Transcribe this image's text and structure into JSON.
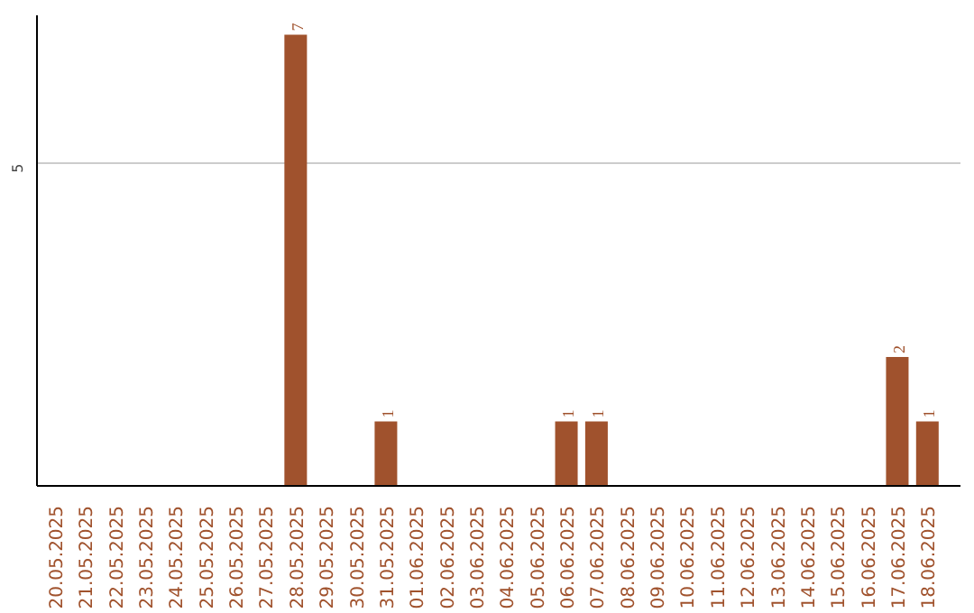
{
  "chart_data": {
    "type": "bar",
    "categories": [
      "20.05.2025",
      "21.05.2025",
      "22.05.2025",
      "23.05.2025",
      "24.05.2025",
      "25.05.2025",
      "26.05.2025",
      "27.05.2025",
      "28.05.2025",
      "29.05.2025",
      "30.05.2025",
      "31.05.2025",
      "01.06.2025",
      "02.06.2025",
      "03.06.2025",
      "04.06.2025",
      "05.06.2025",
      "06.06.2025",
      "07.06.2025",
      "08.06.2025",
      "09.06.2025",
      "10.06.2025",
      "11.06.2025",
      "12.06.2025",
      "13.06.2025",
      "14.06.2025",
      "15.06.2025",
      "16.06.2025",
      "17.06.2025",
      "18.06.2025"
    ],
    "values": [
      0,
      0,
      0,
      0,
      0,
      0,
      0,
      0,
      7,
      0,
      0,
      1,
      0,
      0,
      0,
      0,
      0,
      1,
      1,
      0,
      0,
      0,
      0,
      0,
      0,
      0,
      0,
      0,
      2,
      1
    ],
    "color": "#a0522d",
    "value_labels": [
      null,
      null,
      null,
      null,
      null,
      null,
      null,
      null,
      "7",
      null,
      null,
      "1",
      null,
      null,
      null,
      null,
      null,
      "1",
      "1",
      null,
      null,
      null,
      null,
      null,
      null,
      null,
      null,
      null,
      "2",
      "1"
    ],
    "ylim": [
      0,
      7.3
    ],
    "yticks": [
      5
    ],
    "grid": "y"
  }
}
